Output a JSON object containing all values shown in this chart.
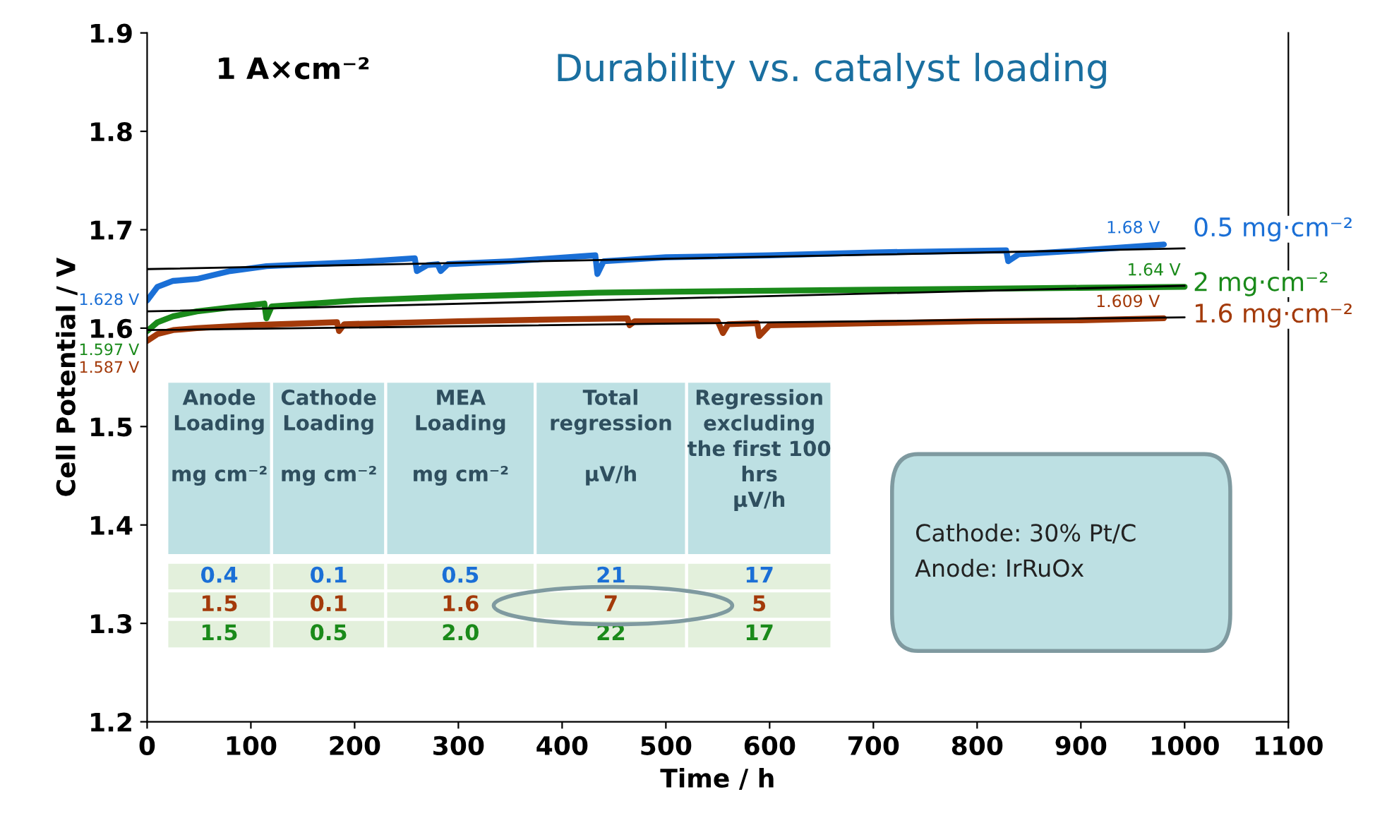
{
  "chart_data": {
    "type": "line",
    "title": "Durability vs. catalyst loading",
    "xlabel": "Time / h",
    "ylabel": "Cell Potential / V",
    "xlim": [
      0,
      1100
    ],
    "xticks": [
      0,
      100,
      200,
      300,
      400,
      500,
      600,
      700,
      800,
      900,
      1000,
      1100
    ],
    "ylim": [
      1.2,
      1.9
    ],
    "yticks": [
      1.2,
      1.3,
      1.4,
      1.5,
      1.6,
      1.7,
      1.8,
      1.9
    ],
    "grid": false,
    "legend": false,
    "series": [
      {
        "name": "0.5 mg·cm⁻²",
        "color": "#1a6fd6",
        "x": [
          0,
          10,
          25,
          48,
          80,
          115,
          200,
          258,
          260,
          270,
          280,
          283,
          290,
          350,
          432,
          434,
          440,
          500,
          600,
          700,
          828,
          830,
          840,
          900,
          980
        ],
        "values": [
          1.628,
          1.642,
          1.648,
          1.65,
          1.658,
          1.663,
          1.667,
          1.671,
          1.658,
          1.664,
          1.665,
          1.658,
          1.665,
          1.668,
          1.674,
          1.655,
          1.668,
          1.672,
          1.674,
          1.677,
          1.679,
          1.668,
          1.675,
          1.679,
          1.685
        ]
      },
      {
        "name": "2 mg·cm⁻²",
        "color": "#1a8a1a",
        "x": [
          0,
          10,
          25,
          48,
          80,
          113,
          115,
          120,
          200,
          300,
          434,
          500,
          600,
          700,
          800,
          900,
          1000
        ],
        "values": [
          1.597,
          1.606,
          1.612,
          1.617,
          1.621,
          1.625,
          1.61,
          1.622,
          1.628,
          1.632,
          1.636,
          1.637,
          1.638,
          1.639,
          1.64,
          1.641,
          1.642
        ]
      },
      {
        "name": "1.6 mg·cm⁻²",
        "color": "#a33a0a",
        "x": [
          0,
          10,
          25,
          48,
          100,
          183,
          185,
          190,
          300,
          400,
          463,
          465,
          470,
          550,
          555,
          560,
          588,
          590,
          600,
          700,
          800,
          900,
          980
        ],
        "values": [
          1.587,
          1.594,
          1.598,
          1.6,
          1.603,
          1.606,
          1.597,
          1.604,
          1.607,
          1.609,
          1.61,
          1.603,
          1.607,
          1.607,
          1.595,
          1.604,
          1.605,
          1.592,
          1.603,
          1.605,
          1.607,
          1.608,
          1.61
        ]
      },
      {
        "color": "#000000",
        "x": [
          0,
          1000
        ],
        "values": [
          1.66,
          1.681
        ]
      },
      {
        "color": "#000000",
        "x": [
          0,
          1000
        ],
        "values": [
          1.617,
          1.643
        ]
      },
      {
        "color": "#000000",
        "x": [
          0,
          1000
        ],
        "values": [
          1.598,
          1.611
        ]
      }
    ],
    "annotations": [
      "1 A×cm⁻²",
      {
        "text": "1.628 V",
        "x": 0,
        "y": 1.628
      },
      {
        "text": "1.597 V",
        "x": 0,
        "y": 1.597
      },
      {
        "text": "1.587 V",
        "x": 0,
        "y": 1.587
      },
      {
        "text": "1.68 V",
        "x": 980,
        "y": 1.685
      },
      {
        "text": "1.64 V",
        "x": 1000,
        "y": 1.642
      },
      {
        "text": "1.609 V",
        "x": 980,
        "y": 1.61
      },
      "Anode\nLoading\n\nmg cm⁻²",
      "Cathode\nLoading\n\nmg cm⁻²",
      "MEA\nLoading\n\nmg cm⁻²",
      "Total\nregression\n\nµV/h",
      "Regression\nexcluding\nthe first 100\nhrs\nµV/h",
      "0.4",
      "0.1",
      "0.5",
      "21",
      "17",
      "1.5",
      "0.1",
      "1.6",
      "7",
      "5",
      "1.5",
      "0.5",
      "2.0",
      "22",
      "17",
      "Cathode: 30% Pt/C\nAnode: IrRuOx"
    ]
  }
}
